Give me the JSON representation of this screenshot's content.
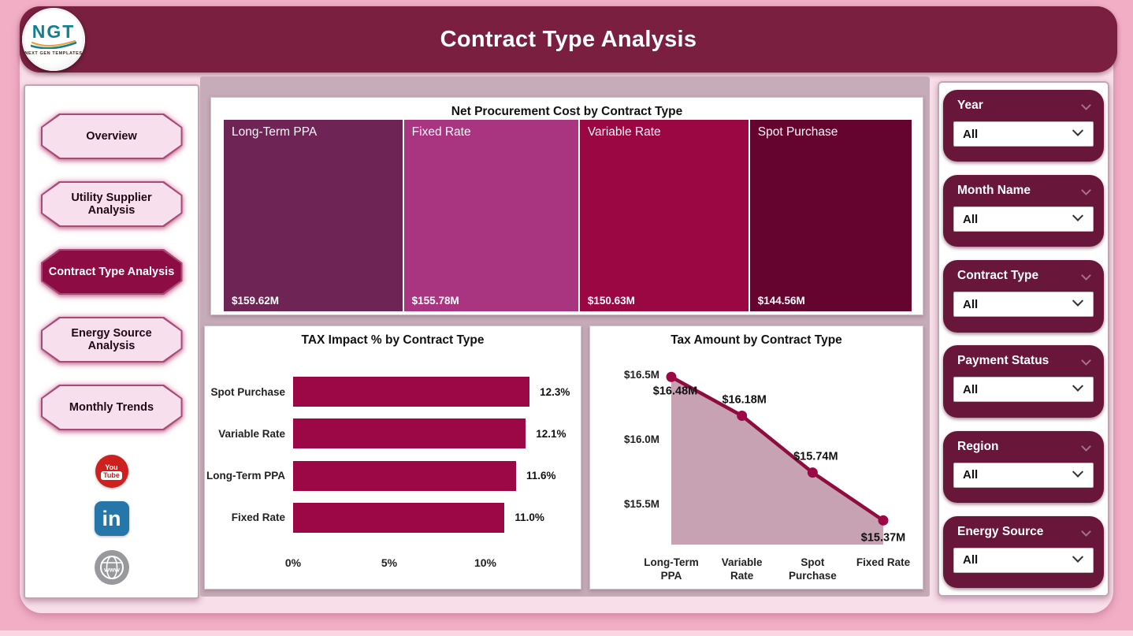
{
  "page": {
    "background": "#F1AEC5",
    "inner_background": "#F8DEE9",
    "charts_backdrop": "#C6ABB8",
    "accent": "#7A1F3F"
  },
  "header": {
    "title": "Contract Type Analysis",
    "background": "#7A1F3F",
    "logo": {
      "text": "NGT",
      "subtext": "NEXT GEN TEMPLATES"
    }
  },
  "sidebar": {
    "items": [
      {
        "label": "Overview",
        "active": false
      },
      {
        "label": "Utility Supplier Analysis",
        "active": false
      },
      {
        "label": "Contract Type Analysis",
        "active": true
      },
      {
        "label": "Energy Source Analysis",
        "active": false
      },
      {
        "label": "Monthly Trends",
        "active": false
      }
    ],
    "active_color": "#8E0C44",
    "inactive_color": "#F8DFED",
    "social": [
      {
        "name": "youtube",
        "text_top": "You",
        "text_bottom": "Tube",
        "color": "#CE201F"
      },
      {
        "name": "linkedin",
        "label": "in",
        "color": "#2477A8"
      },
      {
        "name": "website",
        "label": "www",
        "color": "#97999C"
      }
    ]
  },
  "filters": {
    "card_color": "#68173A",
    "cards": [
      {
        "label": "Year",
        "value": "All"
      },
      {
        "label": "Month Name",
        "value": "All"
      },
      {
        "label": "Contract Type",
        "value": "All"
      },
      {
        "label": "Payment Status",
        "value": "All"
      },
      {
        "label": "Region",
        "value": "All"
      },
      {
        "label": "Energy Source",
        "value": "All"
      }
    ]
  },
  "chart_data": [
    {
      "type": "treemap",
      "title": "Net Procurement Cost by Contract Type",
      "items": [
        {
          "label": "Long-Term PPA",
          "value": 159.62,
          "value_label": "$159.62M",
          "color": "#6F2456"
        },
        {
          "label": "Fixed Rate",
          "value": 155.78,
          "value_label": "$155.78M",
          "color": "#A93480"
        },
        {
          "label": "Variable Rate",
          "value": 150.63,
          "value_label": "$150.63M",
          "color": "#9A0743"
        },
        {
          "label": "Spot Purchase",
          "value": 144.56,
          "value_label": "$144.56M",
          "color": "#65052F"
        }
      ]
    },
    {
      "type": "bar",
      "orientation": "horizontal",
      "title": "TAX Impact % by Contract Type",
      "categories": [
        "Spot Purchase",
        "Variable Rate",
        "Long-Term PPA",
        "Fixed Rate"
      ],
      "values": [
        12.3,
        12.1,
        11.6,
        11.0
      ],
      "value_labels": [
        "12.3%",
        "12.1%",
        "11.6%",
        "11.0%"
      ],
      "x_ticks": [
        {
          "label": "0%",
          "value": 0
        },
        {
          "label": "5%",
          "value": 5
        },
        {
          "label": "10%",
          "value": 10
        }
      ],
      "xlim": [
        0,
        13.5
      ],
      "bar_color": "#9B0845",
      "grid": false
    },
    {
      "type": "area",
      "title": "Tax Amount by Contract Type",
      "categories": [
        [
          "Long-Term",
          "PPA"
        ],
        [
          "Variable",
          "Rate"
        ],
        [
          "Spot",
          "Purchase"
        ],
        [
          "Fixed Rate"
        ]
      ],
      "values": [
        16.48,
        16.18,
        15.74,
        15.37
      ],
      "value_labels": [
        "$16.48M",
        "$16.18M",
        "$15.74M",
        "$15.37M"
      ],
      "y_ticks": [
        {
          "label": "$16.5M",
          "value": 16.5
        },
        {
          "label": "$16.0M",
          "value": 16.0
        },
        {
          "label": "$15.5M",
          "value": 15.5
        }
      ],
      "ylim": [
        15.1,
        16.6
      ],
      "line_color": "#8E0C3E",
      "fill_color": "#C7A2B3",
      "point_color": "#9B0845",
      "grid": false
    }
  ]
}
